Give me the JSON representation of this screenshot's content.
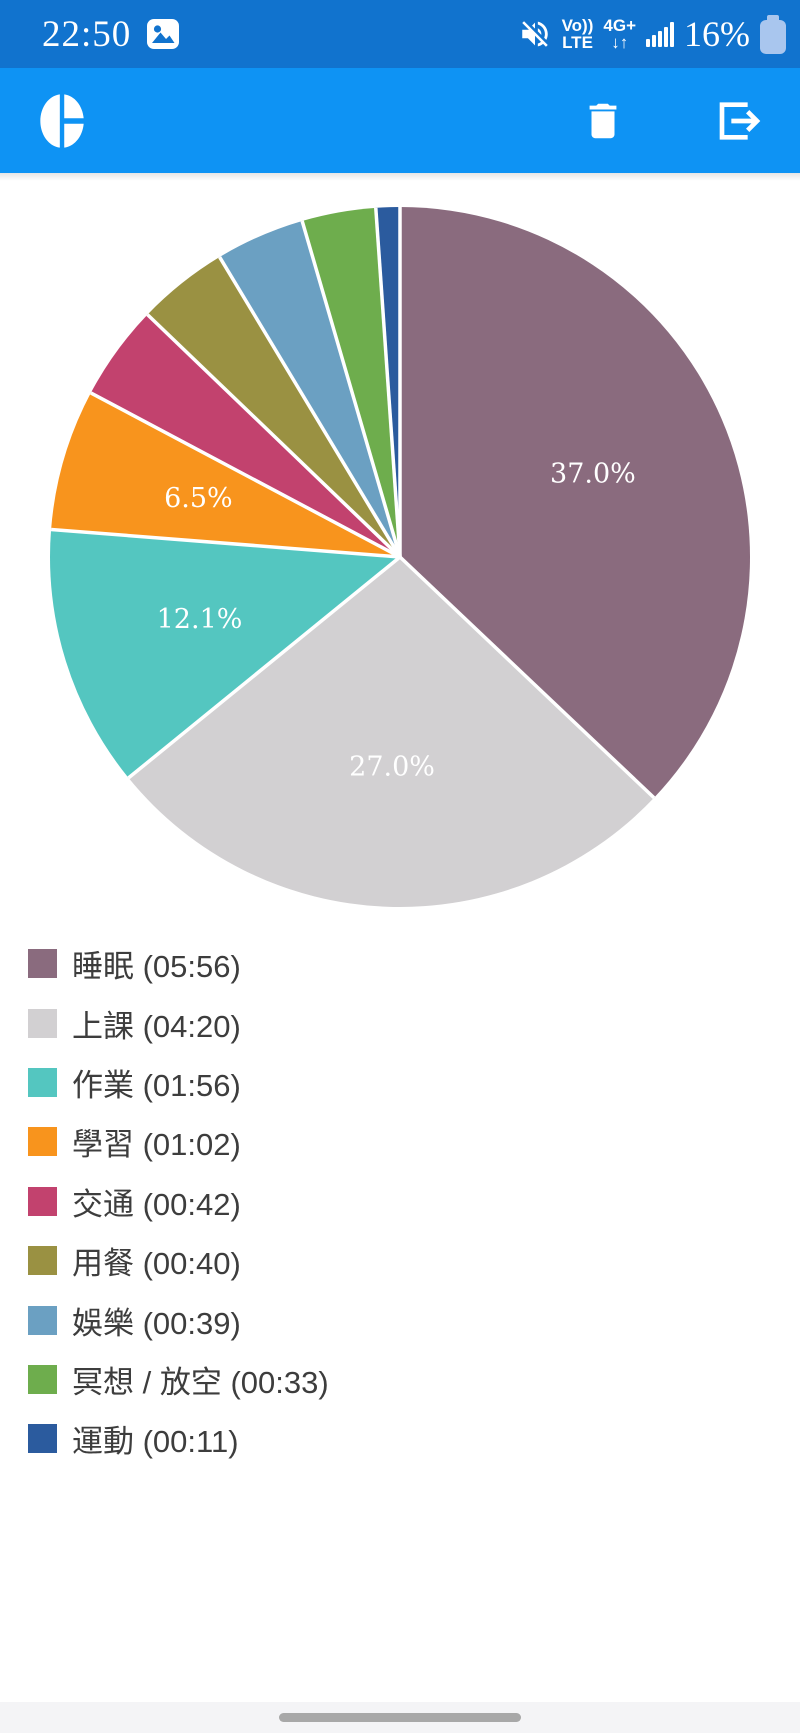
{
  "colors": {
    "status_bar_bg": "#1173ce",
    "app_bar_bg": "#0e93f4",
    "page_bg": "#ffffff",
    "legend_text": "#3d3d3d",
    "nav_strip_bg": "#f4f4f6",
    "nav_pill": "#a8a8a8",
    "battery_icon": "#a9c6ee"
  },
  "status_bar": {
    "time": "22:50",
    "left_icons": [
      "image-icon"
    ],
    "right_icons": [
      "volume-off-icon",
      "signal-bars-icon",
      "battery-icon"
    ],
    "volte_line1": "Vo))",
    "volte_line2": "LTE",
    "network": "4G+",
    "arrows": "↓↑",
    "battery_pct": "16%"
  },
  "app_bar": {
    "left_icon": "pie-chart-icon",
    "right_icons": [
      "trash-icon",
      "export-icon"
    ]
  },
  "chart_data": {
    "type": "pie",
    "title": "",
    "start_angle": "12 o'clock",
    "direction": "clockwise",
    "label_min_pct": 5,
    "label_distance": 0.6,
    "legend_position": "bottom-left",
    "slices": [
      {
        "name": "睡眠",
        "time": "05:56",
        "pct": 37.0,
        "pct_label": "37.0%",
        "legend_label": "睡眠 (05:56)",
        "color": "#8a6b7e"
      },
      {
        "name": "上課",
        "time": "04:20",
        "pct": 27.0,
        "pct_label": "27.0%",
        "legend_label": "上課 (04:20)",
        "color": "#d2d0d2"
      },
      {
        "name": "作業",
        "time": "01:56",
        "pct": 12.1,
        "pct_label": "12.1%",
        "legend_label": "作業 (01:56)",
        "color": "#54c6c0"
      },
      {
        "name": "學習",
        "time": "01:02",
        "pct": 6.5,
        "pct_label": "6.5%",
        "legend_label": "學習 (01:02)",
        "color": "#f8941d"
      },
      {
        "name": "交通",
        "time": "00:42",
        "pct": 4.4,
        "pct_label": "4.4%",
        "legend_label": "交通 (00:42)",
        "color": "#c2426e"
      },
      {
        "name": "用餐",
        "time": "00:40",
        "pct": 4.2,
        "pct_label": "4.2%",
        "legend_label": "用餐 (00:40)",
        "color": "#9a9142"
      },
      {
        "name": "娛樂",
        "time": "00:39",
        "pct": 4.1,
        "pct_label": "4.1%",
        "legend_label": "娛樂 (00:39)",
        "color": "#6ba0c2"
      },
      {
        "name": "冥想 / 放空",
        "time": "00:33",
        "pct": 3.4,
        "pct_label": "3.4%",
        "legend_label": "冥想 / 放空 (00:33)",
        "color": "#6ead4d"
      },
      {
        "name": "運動",
        "time": "00:11",
        "pct": 1.1,
        "pct_label": "1.1%",
        "legend_label": "運動 (00:11)",
        "color": "#2b5b9e"
      }
    ]
  }
}
